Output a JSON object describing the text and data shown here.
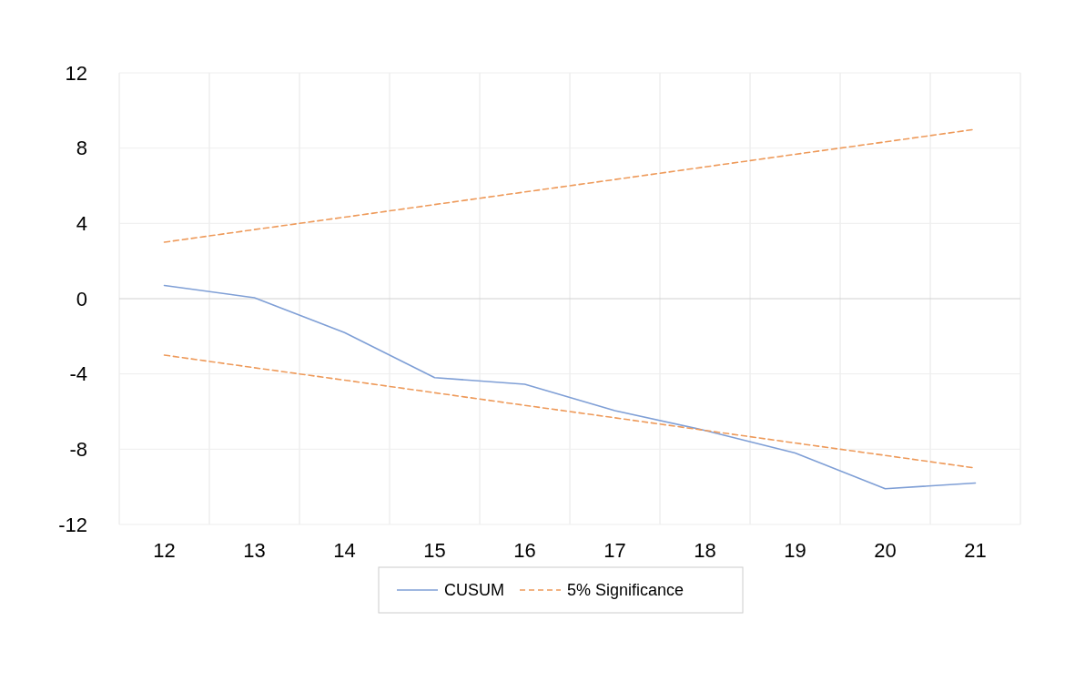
{
  "chart_data": {
    "type": "line",
    "categories": [
      "12",
      "13",
      "14",
      "15",
      "16",
      "17",
      "18",
      "19",
      "20",
      "21"
    ],
    "series": [
      {
        "name": "CUSUM",
        "color": "#7f9fd6",
        "line_style": "solid",
        "values": [
          0.7,
          0.05,
          -1.8,
          -4.2,
          -4.55,
          -5.95,
          -7,
          -8.2,
          -10.1,
          -9.8
        ]
      },
      {
        "name": "5% Significance",
        "color": "#ee9a5a",
        "line_style": "dashed",
        "values": [
          3,
          3.67,
          4.33,
          5,
          5.67,
          6.33,
          7,
          7.67,
          8.33,
          9
        ]
      },
      {
        "color": "#ee9a5a",
        "line_style": "dashed",
        "values": [
          -3,
          -3.67,
          -4.33,
          -5,
          -5.67,
          -6.33,
          -7,
          -7.67,
          -8.33,
          -9
        ]
      }
    ],
    "ylim": [
      -12,
      12
    ],
    "yticks": [
      -12,
      -8,
      -4,
      0,
      4,
      8,
      12
    ],
    "grid": true,
    "legend": "bottom",
    "marker": "none"
  }
}
